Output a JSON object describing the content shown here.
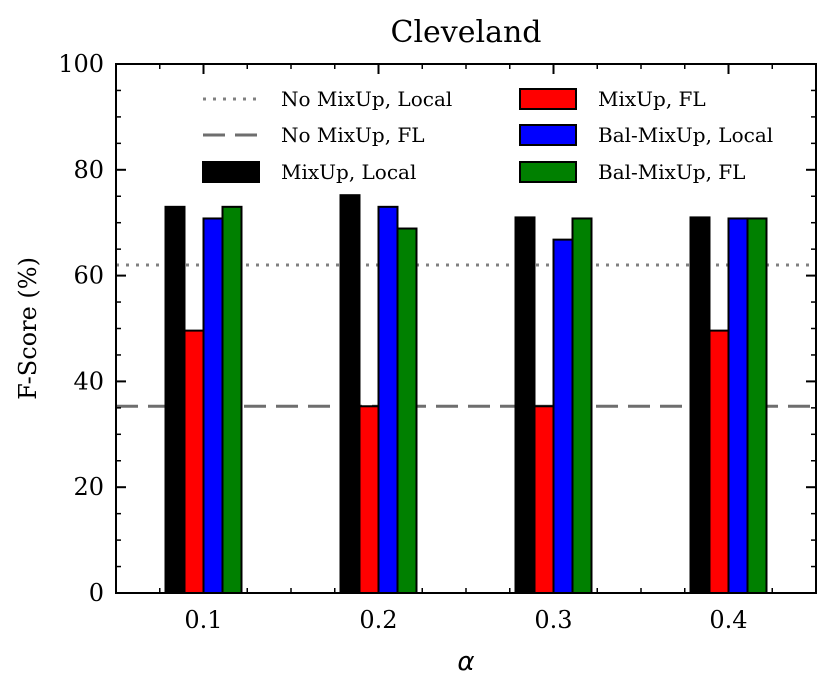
{
  "chart_data": {
    "type": "bar",
    "title": "Cleveland",
    "xlabel": "α",
    "ylabel": "F-Score (%)",
    "ylim": [
      0,
      100
    ],
    "yticks": [
      "0",
      "20",
      "40",
      "60",
      "80",
      "100"
    ],
    "categories": [
      "0.1",
      "0.2",
      "0.3",
      "0.4"
    ],
    "series": [
      {
        "name": "MixUp, Local",
        "color": "#000000",
        "values": [
          73,
          75.2,
          71,
          71
        ]
      },
      {
        "name": "MixUp, FL",
        "color": "#ff0000",
        "values": [
          49.6,
          35.3,
          35.3,
          49.6
        ]
      },
      {
        "name": "Bal-MixUp, Local",
        "color": "#0000ff",
        "values": [
          70.8,
          73,
          66.8,
          70.8
        ]
      },
      {
        "name": "Bal-MixUp, FL",
        "color": "#008000",
        "values": [
          73,
          68.9,
          70.8,
          70.8
        ]
      }
    ],
    "reference_lines": [
      {
        "name": "No MixUp, Local",
        "value": 62,
        "style": "dotted",
        "color": "#808080"
      },
      {
        "name": "No MixUp, FL",
        "value": 35.3,
        "style": "dashed",
        "color": "#6e6e6e"
      }
    ],
    "legend_position": "top"
  }
}
